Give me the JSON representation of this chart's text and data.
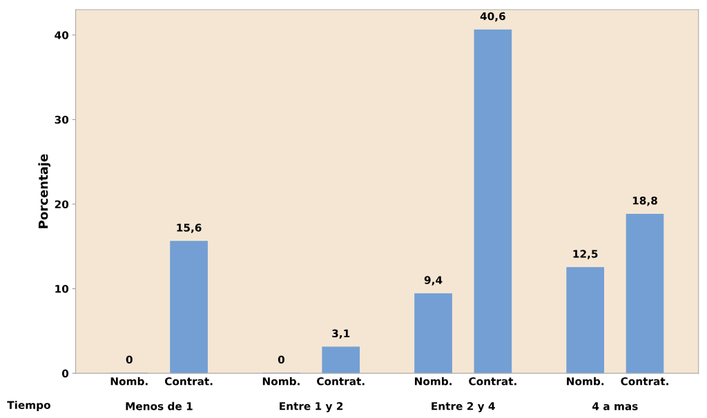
{
  "chart_data": {
    "type": "bar",
    "ylabel": "Porcentaje",
    "xlabel": "Tiempo",
    "categories": [
      "Nomb.",
      "Contrat.",
      "Nomb.",
      "Contrat.",
      "Nomb.",
      "Contrat.",
      "Nomb.",
      "Contrat."
    ],
    "values": [
      0,
      15.6,
      0,
      3.1,
      9.4,
      40.6,
      12.5,
      18.8
    ],
    "value_labels": [
      "0",
      "15,6",
      "0",
      "3,1",
      "9,4",
      "40,6",
      "12,5",
      "18,8"
    ],
    "color": "#739fd4",
    "annotations": [
      "Menos de 1",
      "Entre 1 y 2",
      "Entre 2 y 4",
      "4 a mas"
    ],
    "ylim": [
      0,
      43
    ],
    "yticks": [
      0,
      10,
      20,
      30,
      40
    ],
    "grid": false,
    "legend": false
  }
}
